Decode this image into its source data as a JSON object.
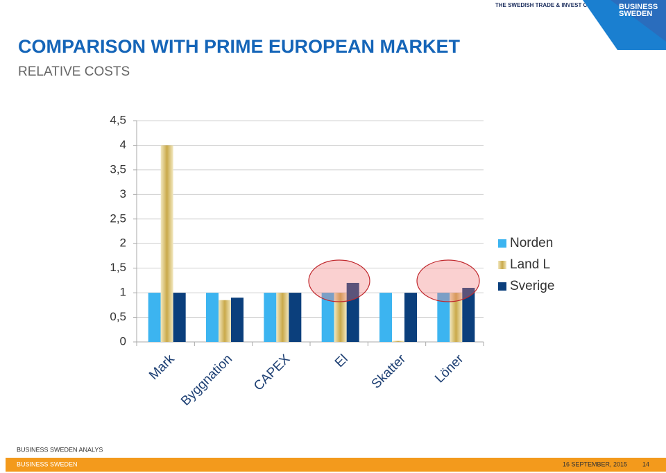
{
  "header": {
    "council": "THE SWEDISH TRADE & INVEST COUNCIL",
    "logo": [
      "BUSINESS",
      "SWEDEN"
    ],
    "title": "COMPARISON WITH PRIME EUROPEAN MARKET",
    "subtitle": "RELATIVE COSTS"
  },
  "chart_data": {
    "type": "bar",
    "categories": [
      "Mark",
      "Byggnation",
      "CAPEX",
      "El",
      "Skatter",
      "Löner"
    ],
    "series": [
      {
        "name": "Norden",
        "color": "#3cb4f0",
        "values": [
          1,
          1,
          1,
          1,
          1,
          1
        ]
      },
      {
        "name": "Land L",
        "color": "#c9a94a",
        "values": [
          4,
          0.85,
          1,
          1,
          0.02,
          1
        ]
      },
      {
        "name": "Sverige",
        "color": "#0b3f7c",
        "values": [
          1,
          0.9,
          1,
          1.2,
          1,
          1.1
        ]
      }
    ],
    "ylim": [
      0,
      4.5
    ],
    "yticks": [
      0,
      {
        "value": 0.5,
        "label": "0,5"
      },
      1,
      {
        "value": 1.5,
        "label": "1,5"
      },
      2,
      {
        "value": 2.5,
        "label": "2,5"
      },
      3,
      {
        "value": 3.5,
        "label": "3,5"
      },
      4,
      {
        "value": 4.5,
        "label": "4,5"
      }
    ],
    "grid": true,
    "legend": "right"
  },
  "footer": {
    "source": "BUSINESS SWEDEN ANALYS",
    "company": "BUSINESS SWEDEN",
    "date": "16 SEPTEMBER, 2015",
    "page": "14"
  }
}
